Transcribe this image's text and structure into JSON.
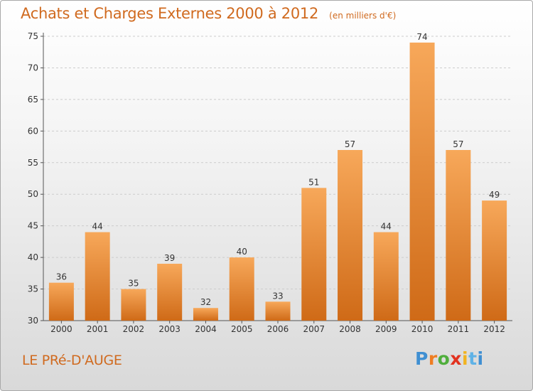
{
  "header": {
    "title": "Achats et Charges Externes 2000 à 2012",
    "unit": "(en milliers d'€)"
  },
  "footer": {
    "commune": "LE PRé-D'AUGE",
    "logo_text": "Proxiti"
  },
  "colors": {
    "bar_light": "#f7a85a",
    "bar_dark": "#cf6a17",
    "title": "#d06a1f",
    "axis": "#555555"
  },
  "chart_data": {
    "type": "bar",
    "categories": [
      "2000",
      "2001",
      "2002",
      "2003",
      "2004",
      "2005",
      "2006",
      "2007",
      "2008",
      "2009",
      "2010",
      "2011",
      "2012"
    ],
    "values": [
      36,
      44,
      35,
      39,
      32,
      40,
      33,
      51,
      57,
      44,
      74,
      57,
      49
    ],
    "ylim": [
      30,
      75
    ],
    "yticks": [
      30,
      35,
      40,
      45,
      50,
      55,
      60,
      65,
      70,
      75
    ],
    "grid": true
  }
}
